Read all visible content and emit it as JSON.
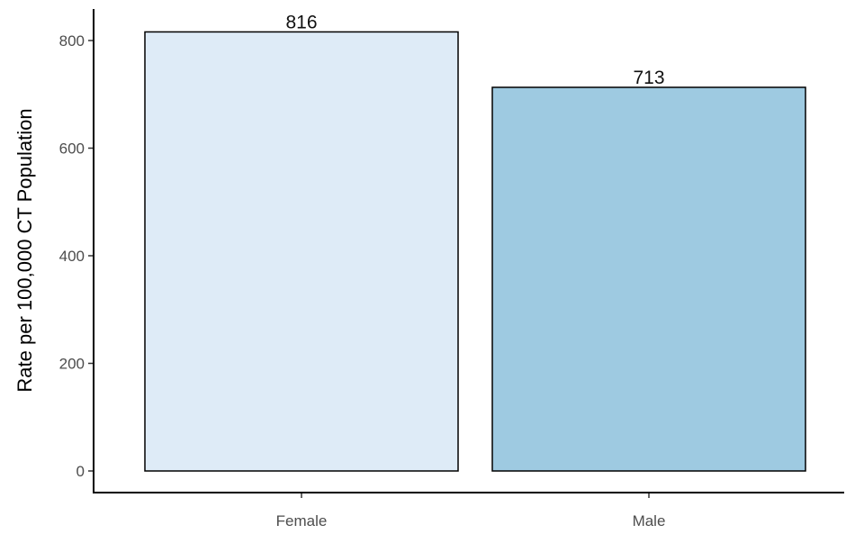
{
  "chart_data": {
    "type": "bar",
    "categories": [
      "Female",
      "Male"
    ],
    "values": [
      816,
      713
    ],
    "data_labels": [
      "816",
      "713"
    ],
    "title": "",
    "xlabel": "",
    "ylabel": "Rate per 100,000 CT Population",
    "ylim": [
      -40,
      860
    ],
    "yticks": [
      0,
      200,
      400,
      600,
      800
    ],
    "ytick_labels": [
      "0",
      "200",
      "400",
      "600",
      "800"
    ],
    "grid": false,
    "legend": "none",
    "colors": {
      "bars": [
        "#deebf7",
        "#9ecae1"
      ],
      "bar_border": "#000000",
      "axis": "#000000",
      "tick_label": "#4d4d4d"
    }
  }
}
